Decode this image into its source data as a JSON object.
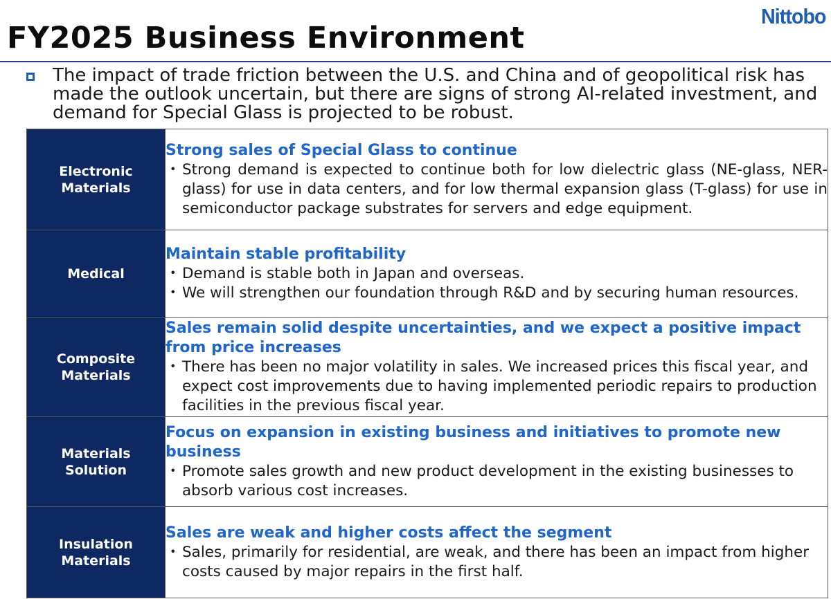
{
  "header": {
    "logo_text": "Nittobo",
    "title": "FY2025 Business Environment",
    "colors": {
      "accent": "#1f5db4",
      "heading": "#1f66c8",
      "segment_bg": "#0e2862"
    }
  },
  "intro": {
    "bullet_icon": "hollow-square-bullet",
    "text": "The impact of trade friction between the U.S. and China and of geopolitical risk has made the outlook uncertain, but there are signs of strong AI-related investment, and demand for Special Glass is projected to be robust."
  },
  "segments": [
    {
      "name_lines": [
        "Electronic",
        "Materials"
      ],
      "heading": "Strong sales of Special Glass to continue",
      "points": [
        "Strong demand is expected to continue both for low dielectric glass (NE-glass, NER-glass) for use in data centers, and for low thermal expansion glass (T-glass) for use in semiconductor package substrates for servers and edge equipment."
      ]
    },
    {
      "name_lines": [
        "Medical"
      ],
      "heading": "Maintain stable profitability",
      "points": [
        "Demand is stable both in Japan and overseas.",
        "We will strengthen our foundation through R&D and by securing human resources."
      ]
    },
    {
      "name_lines": [
        "Composite",
        "Materials"
      ],
      "heading": "Sales remain solid despite uncertainties, and we expect a positive impact from price increases",
      "points": [
        "There has been no major volatility in sales. We increased prices this fiscal year, and expect cost improvements due to having implemented periodic repairs to production facilities in the previous fiscal year."
      ]
    },
    {
      "name_lines": [
        "Materials",
        "Solution"
      ],
      "heading": "Focus on expansion in existing business and initiatives to promote new business",
      "points": [
        "Promote sales growth and new product development in the existing businesses to absorb various cost increases."
      ]
    },
    {
      "name_lines": [
        "Insulation",
        "Materials"
      ],
      "heading": "Sales are weak and higher costs affect the segment",
      "points": [
        "Sales, primarily for residential, are weak, and there has been an impact from higher costs caused by major repairs in the first half."
      ]
    }
  ]
}
